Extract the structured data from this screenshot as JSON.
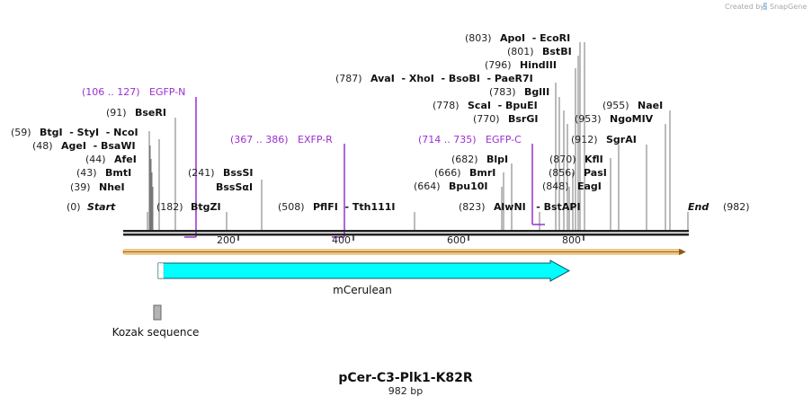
{
  "credit": {
    "created_by": "Created by",
    "brand": "SnapGene"
  },
  "map": {
    "name": "pCer-C3-Plk1-K82R",
    "size_label": "982 bp",
    "length": 982,
    "start": {
      "pos": "(0)",
      "label": "Start"
    },
    "end": {
      "pos": "(982)",
      "label": "End"
    }
  },
  "ruler": [
    "200",
    "400",
    "600",
    "800"
  ],
  "sites": [
    {
      "pos": "(59)",
      "label": "BtgI  - StyI  - NcoI"
    },
    {
      "pos": "(48)",
      "label": "AgeI  - BsaWI"
    },
    {
      "pos": "(44)",
      "label": "AfeI"
    },
    {
      "pos": "(43)",
      "label": "BmtI"
    },
    {
      "pos": "(39)",
      "label": "NheI"
    },
    {
      "pos": "(91)",
      "label": "BseRI"
    },
    {
      "pos": "(182)",
      "label": "BtgZI"
    },
    {
      "pos": "(241)",
      "label": "BssSI"
    },
    {
      "pos": "",
      "label": "BssSαI"
    },
    {
      "pos": "(508)",
      "label": "PflFI  - Tth111I"
    },
    {
      "pos": "(803)",
      "label": "ApoI  - EcoRI"
    },
    {
      "pos": "(801)",
      "label": "BstBI"
    },
    {
      "pos": "(796)",
      "label": "HindIII"
    },
    {
      "pos": "(787)",
      "label": "AvaI  - XhoI  - BsoBI  - PaeR7I"
    },
    {
      "pos": "(783)",
      "label": "BglII"
    },
    {
      "pos": "(778)",
      "label": "ScaI  - BpuEI"
    },
    {
      "pos": "(770)",
      "label": "BsrGI"
    },
    {
      "pos": "(682)",
      "label": "BlpI"
    },
    {
      "pos": "(666)",
      "label": "BmrI"
    },
    {
      "pos": "(664)",
      "label": "Bpu10I"
    },
    {
      "pos": "(823)",
      "label": "AlwNI   - BstAPI"
    },
    {
      "pos": "(955)",
      "label": "NaeI"
    },
    {
      "pos": "(953)",
      "label": "NgoMIV"
    },
    {
      "pos": "(912)",
      "label": "SgrAI"
    },
    {
      "pos": "(870)",
      "label": "KflI"
    },
    {
      "pos": "(856)",
      "label": "PasI"
    },
    {
      "pos": "(848)",
      "label": "EagI"
    }
  ],
  "primers": [
    {
      "range": "(106 .. 127)",
      "name": "EGFP-N"
    },
    {
      "range": "(367 .. 386)",
      "name": "EXFP-R"
    },
    {
      "range": "(714 .. 735)",
      "name": "EGFP-C"
    }
  ],
  "features": [
    {
      "name": "mCerulean",
      "color": "#00ffff"
    },
    {
      "name": "Kozak sequence",
      "color": "#b3b3b3"
    }
  ],
  "colors": {
    "primer": "#9a2fd0",
    "orf": "#e3a23a",
    "backbone": "#222222"
  }
}
